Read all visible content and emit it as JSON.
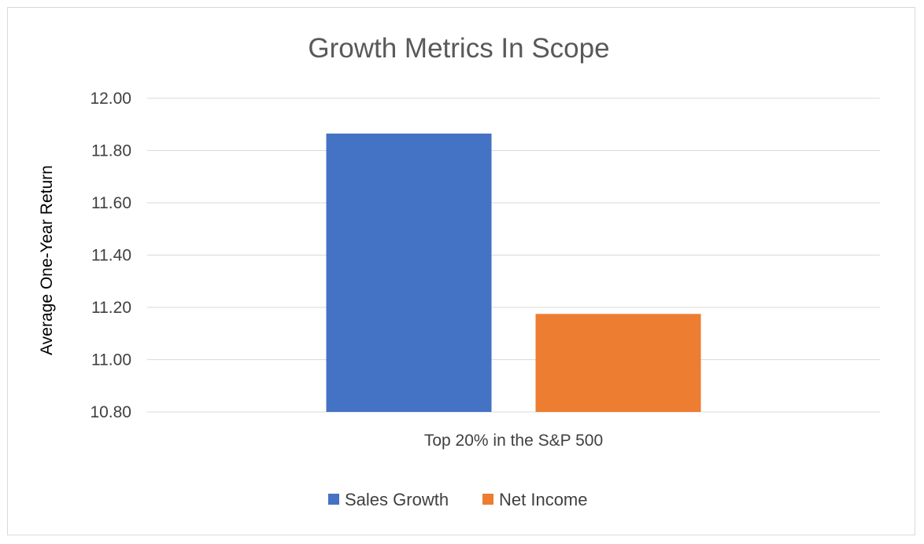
{
  "chart_data": {
    "type": "bar",
    "title": "Growth Metrics In Scope",
    "xlabel": "",
    "ylabel": "Average One-Year Return",
    "categories": [
      "Top 20% in the S&P 500"
    ],
    "series": [
      {
        "name": "Sales Growth",
        "values": [
          11.865
        ],
        "color": "#4472C4"
      },
      {
        "name": "Net Income",
        "values": [
          11.175
        ],
        "color": "#ED7D31"
      }
    ],
    "ylim": [
      10.8,
      12.0
    ],
    "yticks": [
      "12.00",
      "11.80",
      "11.60",
      "11.40",
      "11.20",
      "11.00",
      "10.80"
    ],
    "grid": true,
    "legend": "bottom",
    "gridline_color": "#d9d9d9"
  }
}
